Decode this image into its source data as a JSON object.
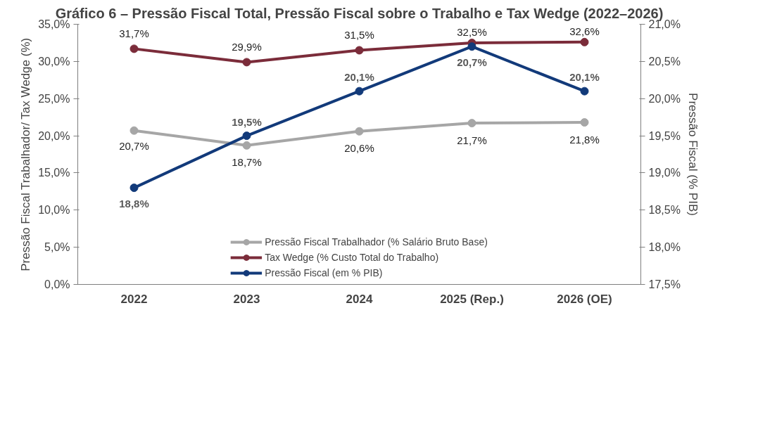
{
  "chart_data": {
    "type": "line",
    "title": "Gráfico 6 – Pressão Fiscal Total, Pressão Fiscal sobre o Trabalho e Tax Wedge (2022–2026)",
    "ylabel": "Pressão Fiscal Trabalhador/ Tax Wedge (%)",
    "y2label": "Pressão Fiscal (% PIB)",
    "categories": [
      "2022",
      "2023",
      "2024",
      "2025 (Rep.)",
      "2026 (OE)"
    ],
    "series": [
      {
        "name": "Pressão Fiscal Trabalhador (% Salário Bruto Base)",
        "color": "#a6a6a6",
        "values": [
          20.7,
          18.7,
          20.6,
          21.7,
          21.8
        ],
        "value_labels": [
          "20,7%",
          "18,7%",
          "20,6%",
          "21,7%",
          "21,8%"
        ]
      },
      {
        "name": "Tax Wedge (% Custo Total do Trabalho)",
        "color": "#7b2c3a",
        "values": [
          31.7,
          29.9,
          31.5,
          32.5,
          32.6
        ],
        "value_labels": [
          "31,7%",
          "29,9%",
          "31,5%",
          "32,5%",
          "32,6%"
        ]
      },
      {
        "name": "Pressão Fiscal (em % PIB)",
        "color": "#123a7a",
        "axis": "y2",
        "values": [
          18.8,
          19.5,
          20.1,
          20.7,
          20.1
        ],
        "value_labels": [
          "18,8%",
          "19,5%",
          "20,1%",
          "20,7%",
          "20,1%"
        ]
      }
    ],
    "ylim": [
      0,
      35
    ],
    "yticks": [
      {
        "value": 0,
        "label": "0,0%"
      },
      {
        "value": 5,
        "label": "5,0%"
      },
      {
        "value": 10,
        "label": "10,0%"
      },
      {
        "value": 15,
        "label": "15,0%"
      },
      {
        "value": 20,
        "label": "20,0%"
      },
      {
        "value": 25,
        "label": "25,0%"
      },
      {
        "value": 30,
        "label": "30,0%"
      },
      {
        "value": 35,
        "label": "35,0%"
      }
    ],
    "y2lim": [
      17.5,
      21
    ],
    "y2ticks": [
      {
        "value": 17.5,
        "label": "17,5%"
      },
      {
        "value": 18,
        "label": "18,0%"
      },
      {
        "value": 18.5,
        "label": "18,5%"
      },
      {
        "value": 19,
        "label": "19,0%"
      },
      {
        "value": 19.5,
        "label": "19,5%"
      },
      {
        "value": 20,
        "label": "20,0%"
      },
      {
        "value": 20.5,
        "label": "20,5%"
      },
      {
        "value": 21,
        "label": "21,0%"
      }
    ],
    "grid": false,
    "legend": "bottom",
    "marker": "circle",
    "line_style": "solid"
  }
}
